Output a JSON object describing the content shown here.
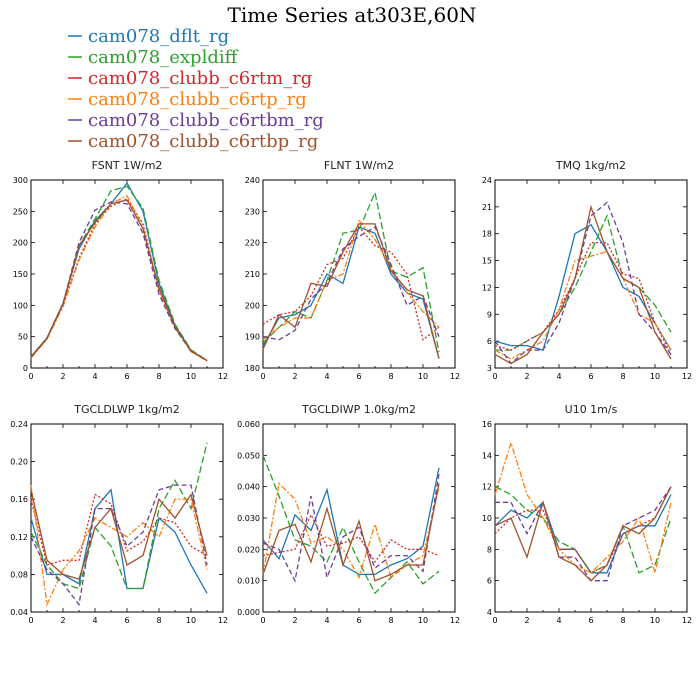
{
  "figure": {
    "title": "Time Series at303E,60N"
  },
  "legend": [
    {
      "name": "cam078_dflt_rg",
      "color": "#1f77b4",
      "dash": "solid"
    },
    {
      "name": "cam078_expldiff",
      "color": "#2ca02c",
      "dash": "longdash"
    },
    {
      "name": "cam078_clubb_c6rtm_rg",
      "color": "#d62728",
      "dash": "dot"
    },
    {
      "name": "cam078_clubb_c6rtp_rg",
      "color": "#ff7f0e",
      "dash": "dashdot"
    },
    {
      "name": "cam078_clubb_c6rtbm_rg",
      "color": "#6a3d9a",
      "dash": "dash"
    },
    {
      "name": "cam078_clubb_c6rtbp_rg",
      "color": "#a0522d",
      "dash": "solid"
    }
  ],
  "chart_data": [
    {
      "type": "line",
      "title": "FSNT   1W/m2",
      "x": [
        0,
        1,
        2,
        3,
        4,
        5,
        6,
        7,
        8,
        9,
        10,
        11
      ],
      "xlim": [
        0,
        12
      ],
      "xticks": [
        0,
        2,
        4,
        6,
        8,
        10,
        12
      ],
      "ylim": [
        0,
        300
      ],
      "yticks": [
        0,
        50,
        100,
        150,
        200,
        250,
        300
      ],
      "series": [
        {
          "name": "cam078_dflt_rg",
          "values": [
            18,
            48,
            103,
            190,
            235,
            262,
            295,
            250,
            135,
            68,
            28,
            12
          ]
        },
        {
          "name": "cam078_expldiff",
          "values": [
            18,
            48,
            103,
            195,
            238,
            283,
            290,
            255,
            140,
            70,
            29,
            12
          ]
        },
        {
          "name": "cam078_clubb_c6rtm_rg",
          "values": [
            17,
            47,
            100,
            175,
            230,
            258,
            270,
            230,
            125,
            65,
            27,
            12
          ]
        },
        {
          "name": "cam078_clubb_c6rtp_rg",
          "values": [
            16,
            46,
            98,
            172,
            225,
            262,
            275,
            225,
            123,
            64,
            26,
            11
          ]
        },
        {
          "name": "cam078_clubb_c6rtbm_rg",
          "values": [
            18,
            48,
            103,
            200,
            252,
            265,
            262,
            215,
            118,
            63,
            27,
            12
          ]
        },
        {
          "name": "cam078_clubb_c6rtbp_rg",
          "values": [
            17,
            47,
            102,
            195,
            232,
            262,
            268,
            222,
            128,
            66,
            27,
            12
          ]
        }
      ]
    },
    {
      "type": "line",
      "title": "FLNT   1W/m2",
      "x": [
        0,
        1,
        2,
        3,
        4,
        5,
        6,
        7,
        8,
        9,
        10,
        11
      ],
      "xlim": [
        0,
        12
      ],
      "xticks": [
        0,
        2,
        4,
        6,
        8,
        10,
        12
      ],
      "ylim": [
        180,
        240
      ],
      "yticks": [
        180,
        190,
        200,
        210,
        220,
        230,
        240
      ],
      "series": [
        {
          "name": "cam078_dflt_rg",
          "values": [
            187,
            196,
            197,
            200,
            210,
            207,
            225,
            223,
            210,
            204,
            202,
            183
          ]
        },
        {
          "name": "cam078_expldiff",
          "values": [
            188,
            193,
            198,
            196,
            208,
            223,
            224,
            236,
            211,
            209,
            212,
            185
          ]
        },
        {
          "name": "cam078_clubb_c6rtm_rg",
          "values": [
            194,
            197,
            198,
            203,
            213,
            215,
            225,
            219,
            217,
            210,
            189,
            193
          ]
        },
        {
          "name": "cam078_clubb_c6rtp_rg",
          "values": [
            189,
            193,
            196,
            196,
            208,
            210,
            227,
            221,
            212,
            204,
            198,
            193
          ]
        },
        {
          "name": "cam078_clubb_c6rtbm_rg",
          "values": [
            190,
            189,
            192,
            202,
            207,
            218,
            222,
            225,
            213,
            200,
            203,
            190
          ]
        },
        {
          "name": "cam078_clubb_c6rtbp_rg",
          "values": [
            186,
            197,
            193,
            207,
            206,
            217,
            226,
            226,
            211,
            205,
            203,
            183
          ]
        }
      ]
    },
    {
      "type": "line",
      "title": "TMQ   1kg/m2",
      "x": [
        0,
        1,
        2,
        3,
        4,
        5,
        6,
        7,
        8,
        9,
        10,
        11
      ],
      "xlim": [
        0,
        12
      ],
      "xticks": [
        0,
        2,
        4,
        6,
        8,
        10,
        12
      ],
      "ylim": [
        3,
        24
      ],
      "yticks": [
        3,
        6,
        9,
        12,
        15,
        18,
        21,
        24
      ],
      "series": [
        {
          "name": "cam078_dflt_rg",
          "values": [
            6,
            5.5,
            5.5,
            5,
            11,
            18,
            19,
            16,
            12,
            11,
            8,
            5
          ]
        },
        {
          "name": "cam078_expldiff",
          "values": [
            5,
            5,
            6,
            7,
            9,
            12,
            16,
            20,
            13,
            12,
            10,
            7
          ]
        },
        {
          "name": "cam078_clubb_c6rtm_rg",
          "values": [
            5.5,
            5,
            6,
            7,
            9.5,
            13,
            17,
            17,
            13.5,
            13,
            8,
            4.5
          ]
        },
        {
          "name": "cam078_clubb_c6rtp_rg",
          "values": [
            5,
            4,
            5,
            6,
            9.5,
            15,
            15.5,
            16,
            13,
            9,
            8,
            5
          ]
        },
        {
          "name": "cam078_clubb_c6rtbm_rg",
          "values": [
            6,
            3.5,
            5,
            5,
            8,
            13,
            20,
            21.5,
            17,
            9,
            7,
            4.5
          ]
        },
        {
          "name": "cam078_clubb_c6rtbp_rg",
          "values": [
            4.5,
            3.5,
            4.5,
            7,
            9,
            13,
            21,
            16,
            13,
            12,
            7,
            4
          ]
        }
      ]
    },
    {
      "type": "line",
      "title": "TGCLDLWP   1kg/m2",
      "x": [
        0,
        1,
        2,
        3,
        4,
        5,
        6,
        7,
        8,
        9,
        10,
        11
      ],
      "xlim": [
        0,
        12
      ],
      "xticks": [
        0,
        2,
        4,
        6,
        8,
        10,
        12
      ],
      "ylim": [
        0.04,
        0.24
      ],
      "yticks": [
        0.04,
        0.08,
        0.12,
        0.16,
        0.2,
        0.24
      ],
      "series": [
        {
          "name": "cam078_dflt_rg",
          "values": [
            0.14,
            0.08,
            0.08,
            0.07,
            0.15,
            0.17,
            0.065,
            0.065,
            0.14,
            0.125,
            0.09,
            0.06
          ]
        },
        {
          "name": "cam078_expldiff",
          "values": [
            0.125,
            0.09,
            0.07,
            0.065,
            0.13,
            0.11,
            0.065,
            0.065,
            0.15,
            0.18,
            0.15,
            0.22
          ]
        },
        {
          "name": "cam078_clubb_c6rtm_rg",
          "values": [
            0.16,
            0.09,
            0.095,
            0.095,
            0.165,
            0.155,
            0.105,
            0.115,
            0.14,
            0.135,
            0.11,
            0.1
          ]
        },
        {
          "name": "cam078_clubb_c6rtp_rg",
          "values": [
            0.175,
            0.048,
            0.085,
            0.105,
            0.14,
            0.13,
            0.12,
            0.135,
            0.12,
            0.16,
            0.16,
            0.085
          ]
        },
        {
          "name": "cam078_clubb_c6rtbm_rg",
          "values": [
            0.12,
            0.085,
            0.07,
            0.048,
            0.15,
            0.15,
            0.11,
            0.125,
            0.17,
            0.175,
            0.175,
            0.09
          ]
        },
        {
          "name": "cam078_clubb_c6rtbp_rg",
          "values": [
            0.17,
            0.095,
            0.08,
            0.075,
            0.13,
            0.15,
            0.09,
            0.1,
            0.16,
            0.14,
            0.165,
            0.1
          ]
        }
      ]
    },
    {
      "type": "line",
      "title": "TGCLDIWP   1.0kg/m2",
      "x": [
        0,
        1,
        2,
        3,
        4,
        5,
        6,
        7,
        8,
        9,
        10,
        11
      ],
      "xlim": [
        0,
        12
      ],
      "xticks": [
        0,
        2,
        4,
        6,
        8,
        10,
        12
      ],
      "ylim": [
        0.0,
        0.06
      ],
      "yticks": [
        0.0,
        0.01,
        0.02,
        0.03,
        0.04,
        0.05,
        0.06
      ],
      "series": [
        {
          "name": "cam078_dflt_rg",
          "values": [
            0.023,
            0.017,
            0.031,
            0.026,
            0.039,
            0.015,
            0.012,
            0.012,
            0.015,
            0.017,
            0.021,
            0.046
          ]
        },
        {
          "name": "cam078_expldiff",
          "values": [
            0.05,
            0.037,
            0.023,
            0.021,
            0.016,
            0.027,
            0.016,
            0.006,
            0.011,
            0.016,
            0.009,
            0.013
          ]
        },
        {
          "name": "cam078_clubb_c6rtm_rg",
          "values": [
            0.018,
            0.019,
            0.02,
            0.031,
            0.021,
            0.022,
            0.024,
            0.016,
            0.023,
            0.02,
            0.02,
            0.018
          ]
        },
        {
          "name": "cam078_clubb_c6rtp_rg",
          "values": [
            0.012,
            0.041,
            0.036,
            0.022,
            0.024,
            0.02,
            0.011,
            0.028,
            0.011,
            0.015,
            0.018,
            0.04
          ]
        },
        {
          "name": "cam078_clubb_c6rtbm_rg",
          "values": [
            0.022,
            0.02,
            0.01,
            0.037,
            0.011,
            0.024,
            0.027,
            0.014,
            0.018,
            0.018,
            0.013,
            0.044
          ]
        },
        {
          "name": "cam078_clubb_c6rtbp_rg",
          "values": [
            0.012,
            0.026,
            0.028,
            0.016,
            0.033,
            0.015,
            0.029,
            0.01,
            0.012,
            0.015,
            0.015,
            0.041
          ]
        }
      ]
    },
    {
      "type": "line",
      "title": "U10   1m/s",
      "x": [
        0,
        1,
        2,
        3,
        4,
        5,
        6,
        7,
        8,
        9,
        10,
        11
      ],
      "xlim": [
        0,
        12
      ],
      "xticks": [
        0,
        2,
        4,
        6,
        8,
        10,
        12
      ],
      "ylim": [
        4,
        16
      ],
      "yticks": [
        4,
        6,
        8,
        10,
        12,
        14,
        16
      ],
      "series": [
        {
          "name": "cam078_dflt_rg",
          "values": [
            9.5,
            10.5,
            10,
            11,
            8,
            8,
            6.5,
            6.5,
            9,
            9.5,
            9.5,
            11.5
          ]
        },
        {
          "name": "cam078_expldiff",
          "values": [
            12,
            11.5,
            10.5,
            10,
            8.5,
            8,
            6.5,
            7,
            9.5,
            6.5,
            7,
            10
          ]
        },
        {
          "name": "cam078_clubb_c6rtm_rg",
          "values": [
            9,
            10,
            10.5,
            10.5,
            8,
            8,
            6.5,
            7,
            9,
            9.5,
            10,
            12
          ]
        },
        {
          "name": "cam078_clubb_c6rtp_rg",
          "values": [
            11.5,
            14.8,
            11.5,
            10,
            8,
            7,
            6.5,
            7.5,
            8.5,
            10,
            6.5,
            11
          ]
        },
        {
          "name": "cam078_clubb_c6rtbm_rg",
          "values": [
            11,
            11,
            9,
            11,
            7.5,
            7.5,
            6,
            6,
            9.5,
            10,
            10.5,
            12
          ]
        },
        {
          "name": "cam078_clubb_c6rtbp_rg",
          "values": [
            9.5,
            10,
            7.5,
            11,
            7.5,
            7,
            6,
            7,
            9.5,
            9,
            10,
            12
          ]
        }
      ]
    }
  ]
}
